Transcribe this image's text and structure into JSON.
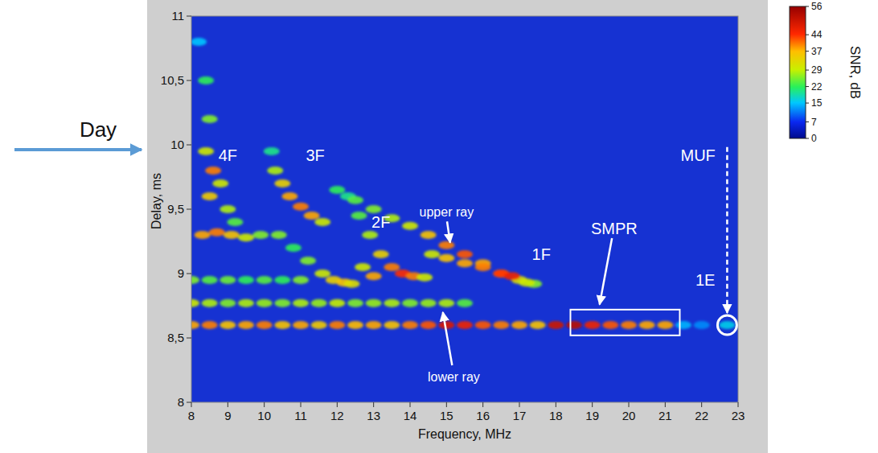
{
  "chart_data": {
    "type": "scatter",
    "side_label": "Day",
    "xlabel": "Frequency, MHz",
    "ylabel": "Delay, ms",
    "xlim": [
      8,
      23
    ],
    "xticks": [
      8,
      9,
      10,
      11,
      12,
      13,
      14,
      15,
      16,
      17,
      18,
      19,
      20,
      21,
      22,
      23
    ],
    "ylim": [
      8,
      11
    ],
    "yticks": [
      8,
      {
        "value": 8.5,
        "label": "8,5"
      },
      9,
      {
        "value": 9.5,
        "label": "9,5"
      },
      10,
      {
        "value": 10.5,
        "label": "10,5"
      },
      11
    ],
    "colorbar": {
      "label": "SNR, dB",
      "range": [
        0,
        56
      ],
      "ticks": [
        0,
        7,
        15,
        22,
        29,
        37,
        44,
        56
      ]
    },
    "series": [
      {
        "x": [
          8,
          8.5,
          9,
          9.5,
          10,
          10.5,
          11,
          11.5,
          12,
          12.5,
          13,
          13.5,
          14,
          14.5,
          15,
          15.5,
          16,
          16.5,
          17,
          17.5,
          18,
          18.5,
          19,
          19.5,
          20,
          20.5,
          21,
          21.5,
          22,
          22.7
        ],
        "values": [
          8.6,
          8.6,
          8.6,
          8.6,
          8.6,
          8.6,
          8.6,
          8.6,
          8.6,
          8.6,
          8.6,
          8.6,
          8.6,
          8.6,
          8.6,
          8.6,
          8.6,
          8.6,
          8.6,
          8.6,
          8.6,
          8.6,
          8.6,
          8.6,
          8.6,
          8.6,
          8.6,
          8.6,
          8.6,
          8.6
        ],
        "snr": [
          38,
          40,
          36,
          38,
          40,
          36,
          38,
          35,
          40,
          37,
          38,
          36,
          40,
          42,
          48,
          46,
          42,
          40,
          38,
          36,
          50,
          52,
          46,
          42,
          40,
          38,
          38,
          14,
          12,
          16
        ]
      },
      {
        "x": [
          8,
          8.5,
          9,
          9.5,
          10,
          10.5,
          11,
          11.5,
          12,
          12.5,
          13,
          13.5,
          14,
          14.5,
          15,
          15.5
        ],
        "values": [
          8.77,
          8.77,
          8.77,
          8.77,
          8.77,
          8.77,
          8.77,
          8.77,
          8.77,
          8.77,
          8.77,
          8.77,
          8.77,
          8.77,
          8.77,
          8.77
        ],
        "snr": [
          30,
          28,
          26,
          28,
          27,
          26,
          28,
          27,
          29,
          26,
          27,
          28,
          26,
          27,
          28,
          24
        ]
      },
      {
        "x": [
          8,
          8.5,
          9,
          9.5,
          10,
          10.5,
          11
        ],
        "values": [
          8.95,
          8.95,
          8.95,
          8.95,
          8.95,
          8.95,
          8.95
        ],
        "snr": [
          26,
          24,
          25,
          22,
          24,
          22,
          26
        ]
      },
      {
        "x": [
          8.2,
          8.4,
          8.5,
          8.4,
          8.6,
          8.5,
          8.8,
          9,
          8.3,
          8.7,
          9.1,
          9.5,
          9.9,
          9.2
        ],
        "values": [
          10.8,
          10.5,
          10.2,
          9.95,
          9.8,
          9.6,
          9.7,
          9.5,
          9.3,
          9.32,
          9.3,
          9.28,
          9.3,
          9.4
        ],
        "snr": [
          15,
          22,
          26,
          30,
          40,
          35,
          30,
          28,
          38,
          40,
          36,
          30,
          26,
          24
        ]
      },
      {
        "x": [
          10.2,
          10.3,
          10.5,
          10.7,
          11,
          11.3,
          11.6,
          10.4,
          10.8,
          11.2,
          11.6,
          11.9,
          12.2
        ],
        "values": [
          9.95,
          9.8,
          9.7,
          9.6,
          9.52,
          9.45,
          9.4,
          9.3,
          9.2,
          9.1,
          9.0,
          8.95,
          8.93
        ],
        "snr": [
          20,
          28,
          34,
          38,
          40,
          38,
          30,
          26,
          22,
          26,
          30,
          34,
          36
        ]
      },
      {
        "x": [
          12.3,
          12.6,
          12.9,
          13.2,
          13.5,
          13.8,
          14.1,
          14.4,
          12.7,
          13,
          12.4
        ],
        "values": [
          9.6,
          9.45,
          9.3,
          9.15,
          9.05,
          9.0,
          8.98,
          8.97,
          9.05,
          8.98,
          8.92
        ],
        "snr": [
          20,
          24,
          28,
          34,
          40,
          44,
          40,
          30,
          30,
          38,
          32
        ]
      },
      {
        "x": [
          12,
          12.5,
          13,
          13.5,
          14,
          14.5,
          15,
          15.5,
          16,
          16.5,
          17,
          17.4
        ],
        "values": [
          9.65,
          9.57,
          9.5,
          9.43,
          9.37,
          9.3,
          9.22,
          9.15,
          9.08,
          9.0,
          8.95,
          8.92
        ],
        "snr": [
          22,
          24,
          26,
          28,
          30,
          36,
          40,
          42,
          38,
          36,
          32,
          26
        ]
      },
      {
        "x": [
          14.6,
          15,
          15.5,
          16,
          16.5,
          16.8,
          17.2
        ],
        "values": [
          9.15,
          9.12,
          9.08,
          9.05,
          9.0,
          8.98,
          8.93
        ],
        "snr": [
          30,
          36,
          38,
          40,
          44,
          46,
          30
        ]
      }
    ],
    "annotations": [
      {
        "text": "4F",
        "x": 9.0,
        "y": 9.92
      },
      {
        "text": "3F",
        "x": 11.4,
        "y": 9.92
      },
      {
        "text": "2F",
        "x": 13.2,
        "y": 9.4
      },
      {
        "text": "1F",
        "x": 17.6,
        "y": 9.15
      },
      {
        "text": "upper ray",
        "x": 15.0,
        "y": 9.48,
        "arrow_to": [
          15.1,
          9.24
        ]
      },
      {
        "text": "lower ray",
        "x": 15.2,
        "y": 8.2,
        "arrow_to": [
          14.9,
          8.7
        ]
      },
      {
        "text": "SMPR",
        "x": 19.6,
        "y": 9.35,
        "arrow_to": [
          19.2,
          8.76
        ],
        "box": [
          18.4,
          21.4,
          8.52,
          8.72
        ]
      },
      {
        "text": "1E",
        "x": 22.1,
        "y": 8.95
      },
      {
        "text": "MUF",
        "x": 21.9,
        "y": 9.92,
        "arrow_to": [
          22.7,
          8.68
        ],
        "circle": [
          22.7,
          8.6
        ],
        "line_style": "dashed"
      }
    ]
  }
}
